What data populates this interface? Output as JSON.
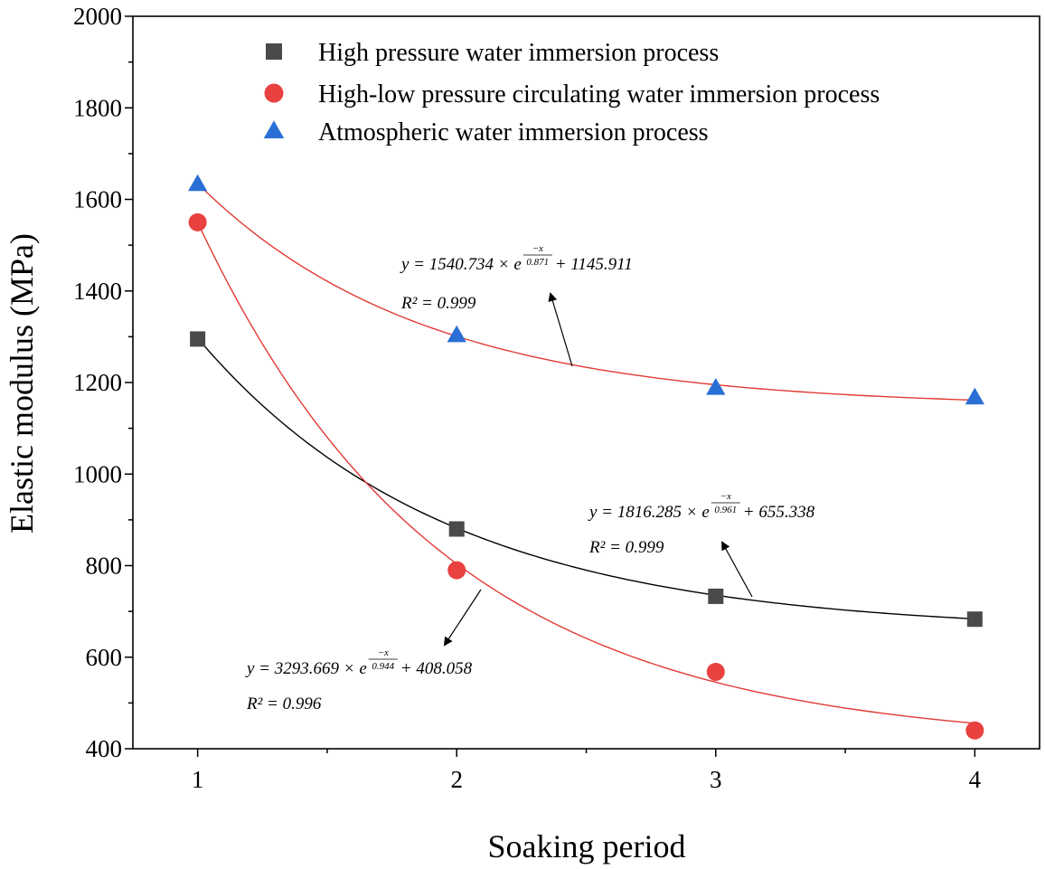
{
  "chart_data": {
    "type": "scatter",
    "title": "",
    "xlabel": "Soaking period",
    "ylabel": "Elastic modulus (MPa)",
    "xlim": [
      0.75,
      4.25
    ],
    "ylim": [
      400,
      2000
    ],
    "xticks": [
      1,
      2,
      3,
      4
    ],
    "yticks": [
      400,
      600,
      800,
      1000,
      1200,
      1400,
      1600,
      1800,
      2000
    ],
    "legend_position": "top",
    "series": [
      {
        "name": "High pressure water immersion process",
        "marker": "square",
        "color": "#4a4a4a",
        "fit_color": "#000000",
        "x": [
          1,
          2,
          3,
          4
        ],
        "y": [
          1295,
          880,
          733,
          683
        ],
        "fit": {
          "A": 1816.285,
          "t": 0.961,
          "y0": 655.338
        },
        "equation": {
          "prefix": "y = 1816.285 × e",
          "exp_num": "−x",
          "exp_den": "0.961",
          "suffix": " + 655.338",
          "r2": "R² = 0.999"
        }
      },
      {
        "name": "High-low pressure circulating water immersion process",
        "marker": "circle",
        "color": "#e8413f",
        "fit_color": "#e23a35",
        "x": [
          1,
          2,
          3,
          4
        ],
        "y": [
          1550,
          790,
          568,
          440
        ],
        "fit": {
          "A": 3293.669,
          "t": 0.944,
          "y0": 408.058
        },
        "equation": {
          "prefix": "y = 3293.669 × e",
          "exp_num": "−x",
          "exp_den": "0.944",
          "suffix": " + 408.058",
          "r2": "R² = 0.996"
        }
      },
      {
        "name": "Atmospheric water immersion process",
        "marker": "triangle",
        "color": "#2a6fd6",
        "fit_color": "#e23a35",
        "x": [
          1,
          2,
          3,
          4
        ],
        "y": [
          1633,
          1303,
          1188,
          1167
        ],
        "fit": {
          "A": 1540.734,
          "t": 0.871,
          "y0": 1145.911
        },
        "equation": {
          "prefix": "y = 1540.734 × e",
          "exp_num": "−x",
          "exp_den": "0.871",
          "suffix": " + 1145.911",
          "r2": "R² = 0.999"
        }
      }
    ]
  }
}
